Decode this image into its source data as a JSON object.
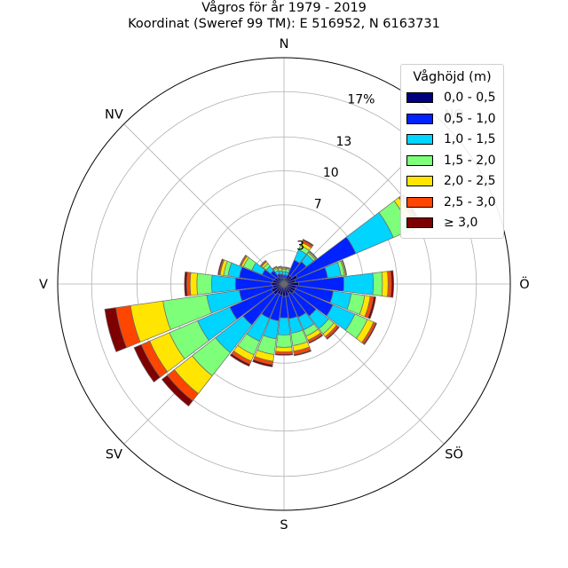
{
  "title_line1": "Vågros för år 1979 - 2019",
  "title_line2": "Koordinat (Sweref 99 TM): E 516952, N 6163731",
  "directions": [
    "N",
    "NO",
    "Ö",
    "SÖ",
    "S",
    "SV",
    "V",
    "NV"
  ],
  "radial_ticks": [
    "3",
    "7",
    "10",
    "13",
    "17%"
  ],
  "legend": {
    "title": "Våghöjd (m)",
    "items": [
      {
        "label": "0,0 - 0,5",
        "color": "#00007f"
      },
      {
        "label": "0,5 - 1,0",
        "color": "#0022ff"
      },
      {
        "label": "1,0 - 1,5",
        "color": "#00d4ff"
      },
      {
        "label": "1,5 - 2,0",
        "color": "#7dff7a"
      },
      {
        "label": "2,0 - 2,5",
        "color": "#ffe500"
      },
      {
        "label": "2,5 - 3,0",
        "color": "#ff4600"
      },
      {
        "label": "≥ 3,0",
        "color": "#7f0000"
      }
    ]
  },
  "chart_data": {
    "type": "windrose",
    "radial_ticks": [
      3,
      7,
      10,
      13,
      17
    ],
    "rmax": 20,
    "sectors": [
      {
        "dir_deg": 0,
        "segments": [
          0.5,
          0.3,
          0.3,
          0.2,
          0.1,
          0.05,
          0.05
        ]
      },
      {
        "dir_deg": 15,
        "segments": [
          0.5,
          0.3,
          0.3,
          0.2,
          0.1,
          0.05,
          0.05
        ]
      },
      {
        "dir_deg": 30,
        "segments": [
          0.9,
          1.4,
          1.0,
          0.4,
          0.3,
          0.2,
          0.1
        ]
      },
      {
        "dir_deg": 45,
        "segments": [
          0.9,
          1.6,
          0.8,
          0.2,
          0.1,
          0.05,
          0.05
        ]
      },
      {
        "dir_deg": 60,
        "segments": [
          1.3,
          5.6,
          3.6,
          1.7,
          0.5,
          0.3,
          0.2
        ]
      },
      {
        "dir_deg": 75,
        "segments": [
          1.0,
          2.9,
          1.2,
          0.3,
          0.1,
          0.05,
          0.05
        ]
      },
      {
        "dir_deg": 90,
        "segments": [
          1.3,
          4.0,
          2.6,
          0.8,
          0.5,
          0.3,
          0.2
        ]
      },
      {
        "dir_deg": 105,
        "segments": [
          1.1,
          3.3,
          1.6,
          1.2,
          0.5,
          0.3,
          0.2
        ]
      },
      {
        "dir_deg": 120,
        "segments": [
          1.1,
          3.6,
          2.1,
          1.2,
          0.6,
          0.2,
          0.1
        ]
      },
      {
        "dir_deg": 135,
        "segments": [
          1.1,
          2.5,
          1.4,
          0.6,
          0.3,
          0.2,
          0.1
        ]
      },
      {
        "dir_deg": 150,
        "segments": [
          0.9,
          2.3,
          1.2,
          0.6,
          0.4,
          0.2,
          0.1
        ]
      },
      {
        "dir_deg": 165,
        "segments": [
          1.1,
          2.0,
          1.3,
          1.1,
          0.5,
          0.3,
          0.1
        ]
      },
      {
        "dir_deg": 180,
        "segments": [
          1.1,
          1.9,
          1.5,
          1.1,
          0.4,
          0.2,
          0.1
        ]
      },
      {
        "dir_deg": 195,
        "segments": [
          1.0,
          2.3,
          1.6,
          1.4,
          0.6,
          0.3,
          0.2
        ]
      },
      {
        "dir_deg": 210,
        "segments": [
          1.0,
          2.3,
          2.2,
          1.3,
          0.6,
          0.3,
          0.2
        ]
      },
      {
        "dir_deg": 225,
        "segments": [
          1.2,
          3.4,
          3.1,
          2.6,
          2.0,
          0.8,
          0.6
        ]
      },
      {
        "dir_deg": 240,
        "segments": [
          1.2,
          4.0,
          3.1,
          2.7,
          1.9,
          0.8,
          0.7
        ]
      },
      {
        "dir_deg": 255,
        "segments": [
          1.0,
          3.0,
          2.9,
          3.9,
          2.9,
          1.3,
          1.0
        ]
      },
      {
        "dir_deg": 270,
        "segments": [
          1.1,
          3.2,
          2.1,
          1.3,
          0.6,
          0.3,
          0.2
        ]
      },
      {
        "dir_deg": 285,
        "segments": [
          1.0,
          3.0,
          1.0,
          0.4,
          0.3,
          0.1,
          0.1
        ]
      },
      {
        "dir_deg": 300,
        "segments": [
          0.9,
          1.2,
          1.0,
          0.8,
          0.2,
          0.1,
          0.05
        ]
      },
      {
        "dir_deg": 315,
        "segments": [
          0.8,
          0.7,
          0.5,
          0.3,
          0.2,
          0.1,
          0.05
        ]
      },
      {
        "dir_deg": 330,
        "segments": [
          0.6,
          0.4,
          0.3,
          0.2,
          0.1,
          0.05,
          0.05
        ]
      },
      {
        "dir_deg": 345,
        "segments": [
          0.5,
          0.4,
          0.3,
          0.2,
          0.1,
          0.05,
          0.05
        ]
      }
    ],
    "sector_width_deg": 14,
    "legend_placement": "top-right",
    "grid": true
  }
}
